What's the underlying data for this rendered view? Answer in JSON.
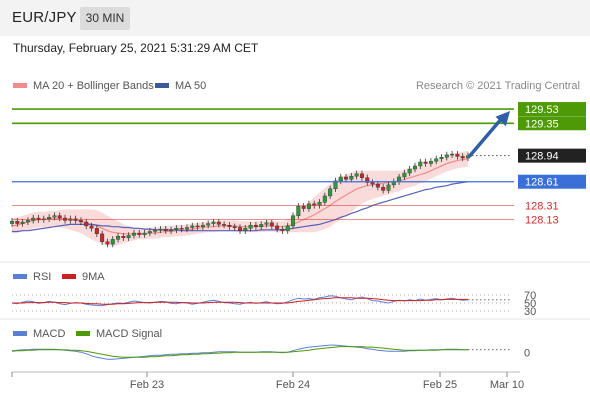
{
  "header": {
    "symbol": "EUR/JPY",
    "timeframe": "30 MIN"
  },
  "timestamp": "Thursday, February 25, 2021 5:31:29 AM CET",
  "legend": {
    "bb": "MA 20 + Bollinger Bands",
    "ma50": "MA 50"
  },
  "credit": "Research © 2021 Trading Central",
  "rsi_legend": {
    "rsi": "RSI",
    "ma": "9MA"
  },
  "macd_legend": {
    "macd": "MACD",
    "signal": "MACD Signal"
  },
  "colors": {
    "target": "#4e9a06",
    "pivot": "#3a6fd8",
    "support": "#d12b2b",
    "price": "#222222",
    "ma50": "#5561b8",
    "bb": "#f5b0b0",
    "up": "#2b9a3a",
    "down": "#c62828",
    "rsi": "#5c7fd6",
    "rsi_ma": "#cc1f1f",
    "macd": "#5c7fd6",
    "macd_signal": "#4e9a06",
    "arrow": "#2f5fa8"
  },
  "chart_data": {
    "type": "candlestick",
    "x_labels": [
      "Feb 23",
      "Feb 24",
      "Feb 25",
      "Mar 10"
    ],
    "ylim": [
      127.72,
      129.67
    ],
    "levels": [
      {
        "value": 129.53,
        "label": "129.53",
        "kind": "target"
      },
      {
        "value": 129.35,
        "label": "129.35",
        "kind": "target"
      },
      {
        "value": 128.94,
        "label": "128.94",
        "kind": "price"
      },
      {
        "value": 128.61,
        "label": "128.61",
        "kind": "pivot"
      },
      {
        "value": 128.31,
        "label": "128.31",
        "kind": "support"
      },
      {
        "value": 128.13,
        "label": "128.13",
        "kind": "support"
      }
    ],
    "close_series": [
      128.11,
      128.08,
      128.1,
      128.12,
      128.15,
      128.13,
      128.14,
      128.16,
      128.18,
      128.15,
      128.12,
      128.14,
      128.12,
      128.1,
      128.05,
      128.02,
      127.95,
      127.85,
      127.82,
      127.88,
      127.92,
      127.9,
      127.93,
      127.96,
      127.94,
      127.96,
      127.98,
      128.0,
      128.01,
      127.99,
      128.0,
      128.02,
      128.01,
      128.03,
      128.05,
      128.04,
      128.06,
      128.08,
      128.1,
      128.07,
      128.06,
      128.04,
      128.03,
      127.99,
      128.02,
      128.06,
      128.04,
      128.07,
      128.09,
      128.05,
      128.01,
      127.99,
      128.05,
      128.18,
      128.3,
      128.27,
      128.33,
      128.31,
      128.35,
      128.43,
      128.52,
      128.62,
      128.67,
      128.64,
      128.68,
      128.71,
      128.66,
      128.6,
      128.58,
      128.54,
      128.5,
      128.57,
      128.61,
      128.67,
      128.72,
      128.77,
      128.81,
      128.86,
      128.84,
      128.87,
      128.9,
      128.92,
      128.95,
      128.96,
      128.93,
      128.91,
      128.94
    ],
    "ma20": [
      128.05,
      128.06,
      128.08,
      128.1,
      128.12,
      128.13,
      128.13,
      128.14,
      128.14,
      128.14,
      128.14,
      128.13,
      128.12,
      128.11,
      128.09,
      128.07,
      128.05,
      128.02,
      127.99,
      127.97,
      127.96,
      127.95,
      127.95,
      127.95,
      127.95,
      127.95,
      127.96,
      127.96,
      127.97,
      127.98,
      127.98,
      127.99,
      127.99,
      128.0,
      128.01,
      128.02,
      128.03,
      128.04,
      128.04,
      128.05,
      128.05,
      128.05,
      128.05,
      128.04,
      128.04,
      128.04,
      128.04,
      128.04,
      128.05,
      128.05,
      128.04,
      128.04,
      128.05,
      128.07,
      128.1,
      128.13,
      128.16,
      128.19,
      128.23,
      128.27,
      128.31,
      128.36,
      128.4,
      128.44,
      128.48,
      128.52,
      128.54,
      128.56,
      128.57,
      128.58,
      128.59,
      128.6,
      128.61,
      128.62,
      128.64,
      128.66,
      128.68,
      128.7,
      128.72,
      128.75,
      128.78,
      128.81,
      128.84,
      128.86,
      128.88,
      128.89,
      128.9
    ],
    "bb_width": [
      0.1,
      0.1,
      0.1,
      0.1,
      0.1,
      0.1,
      0.1,
      0.1,
      0.1,
      0.11,
      0.12,
      0.13,
      0.14,
      0.15,
      0.17,
      0.19,
      0.2,
      0.2,
      0.19,
      0.17,
      0.15,
      0.12,
      0.1,
      0.08,
      0.07,
      0.07,
      0.07,
      0.07,
      0.07,
      0.07,
      0.07,
      0.07,
      0.07,
      0.07,
      0.07,
      0.07,
      0.07,
      0.07,
      0.07,
      0.07,
      0.07,
      0.07,
      0.07,
      0.07,
      0.07,
      0.07,
      0.07,
      0.07,
      0.07,
      0.07,
      0.07,
      0.07,
      0.08,
      0.1,
      0.13,
      0.16,
      0.19,
      0.22,
      0.24,
      0.26,
      0.27,
      0.27,
      0.27,
      0.26,
      0.25,
      0.23,
      0.21,
      0.19,
      0.18,
      0.17,
      0.16,
      0.15,
      0.14,
      0.13,
      0.12,
      0.12,
      0.12,
      0.11,
      0.11,
      0.1,
      0.1,
      0.1,
      0.1,
      0.1,
      0.1,
      0.1,
      0.1
    ],
    "ma50": [
      127.98,
      127.98,
      127.99,
      127.99,
      128.0,
      128.01,
      128.02,
      128.03,
      128.04,
      128.05,
      128.06,
      128.07,
      128.07,
      128.07,
      128.07,
      128.07,
      128.06,
      128.05,
      128.05,
      128.04,
      128.04,
      128.03,
      128.03,
      128.02,
      128.02,
      128.01,
      128.01,
      128.0,
      128.0,
      128.0,
      128.0,
      128.0,
      127.99,
      127.99,
      127.99,
      127.99,
      127.99,
      127.99,
      127.99,
      127.99,
      127.99,
      127.99,
      127.99,
      127.99,
      127.99,
      127.99,
      127.99,
      128.0,
      128.0,
      128.0,
      128.0,
      128.0,
      128.01,
      128.02,
      128.03,
      128.04,
      128.05,
      128.06,
      128.07,
      128.09,
      128.11,
      128.13,
      128.16,
      128.18,
      128.21,
      128.23,
      128.26,
      128.28,
      128.31,
      128.33,
      128.35,
      128.37,
      128.39,
      128.41,
      128.43,
      128.45,
      128.47,
      128.49,
      128.51,
      128.52,
      128.54,
      128.55,
      128.56,
      128.58,
      128.59,
      128.6,
      128.61
    ],
    "rsi": {
      "ticks": [
        70,
        50,
        30
      ],
      "ylim": [
        20,
        80
      ],
      "rsi": [
        50,
        48,
        52,
        55,
        53,
        49,
        51,
        54,
        52,
        48,
        46,
        49,
        51,
        50,
        47,
        45,
        44,
        43,
        46,
        48,
        50,
        49,
        52,
        55,
        53,
        51,
        50,
        52,
        54,
        53,
        49,
        48,
        51,
        50,
        47,
        49,
        52,
        55,
        57,
        54,
        51,
        50,
        48,
        47,
        50,
        52,
        49,
        51,
        53,
        50,
        48,
        49,
        53,
        58,
        62,
        60,
        61,
        59,
        63,
        65,
        68,
        67,
        63,
        60,
        58,
        62,
        65,
        61,
        56,
        55,
        52,
        50,
        54,
        57,
        55,
        58,
        56,
        60,
        57,
        59,
        61,
        58,
        60,
        62,
        59,
        57,
        58
      ],
      "ma9": [
        50,
        50,
        50,
        51,
        51,
        51,
        51,
        52,
        52,
        51,
        51,
        50,
        50,
        50,
        49,
        48,
        48,
        47,
        47,
        47,
        48,
        48,
        49,
        50,
        51,
        51,
        51,
        52,
        52,
        52,
        52,
        52,
        51,
        51,
        50,
        50,
        50,
        51,
        52,
        52,
        52,
        52,
        52,
        51,
        50,
        50,
        50,
        50,
        50,
        50,
        50,
        50,
        50,
        52,
        54,
        55,
        57,
        58,
        60,
        61,
        62,
        63,
        63,
        63,
        63,
        62,
        62,
        62,
        61,
        60,
        58,
        57,
        56,
        56,
        56,
        56,
        56,
        56,
        57,
        57,
        58,
        58,
        59,
        59,
        59,
        59,
        59
      ]
    },
    "macd": {
      "ticks": [
        0
      ],
      "ylim": [
        -0.3,
        0.25
      ],
      "macd": [
        0.04,
        0.05,
        0.06,
        0.06,
        0.07,
        0.07,
        0.07,
        0.07,
        0.07,
        0.06,
        0.05,
        0.04,
        0.03,
        0.01,
        -0.02,
        -0.06,
        -0.09,
        -0.11,
        -0.13,
        -0.13,
        -0.12,
        -0.11,
        -0.1,
        -0.09,
        -0.08,
        -0.07,
        -0.06,
        -0.05,
        -0.05,
        -0.04,
        -0.03,
        -0.03,
        -0.02,
        -0.02,
        -0.01,
        -0.01,
        0.0,
        0.0,
        0.01,
        0.02,
        0.02,
        0.02,
        0.02,
        0.01,
        0.01,
        0.01,
        0.01,
        0.02,
        0.02,
        0.02,
        0.01,
        0.0,
        0.01,
        0.04,
        0.07,
        0.09,
        0.11,
        0.12,
        0.13,
        0.14,
        0.15,
        0.15,
        0.14,
        0.13,
        0.12,
        0.11,
        0.1,
        0.08,
        0.07,
        0.05,
        0.04,
        0.03,
        0.03,
        0.03,
        0.03,
        0.04,
        0.04,
        0.05,
        0.05,
        0.06,
        0.06,
        0.06,
        0.07,
        0.07,
        0.07,
        0.06,
        0.06
      ],
      "signal": [
        0.03,
        0.04,
        0.04,
        0.05,
        0.05,
        0.06,
        0.06,
        0.06,
        0.06,
        0.06,
        0.06,
        0.05,
        0.05,
        0.04,
        0.03,
        0.01,
        -0.01,
        -0.03,
        -0.05,
        -0.07,
        -0.08,
        -0.09,
        -0.09,
        -0.09,
        -0.09,
        -0.09,
        -0.08,
        -0.08,
        -0.07,
        -0.06,
        -0.06,
        -0.05,
        -0.04,
        -0.04,
        -0.03,
        -0.03,
        -0.02,
        -0.02,
        -0.01,
        -0.01,
        0.0,
        0.0,
        0.01,
        0.01,
        0.01,
        0.01,
        0.01,
        0.01,
        0.01,
        0.01,
        0.01,
        0.01,
        0.01,
        0.02,
        0.03,
        0.04,
        0.05,
        0.07,
        0.08,
        0.09,
        0.1,
        0.11,
        0.12,
        0.12,
        0.12,
        0.12,
        0.12,
        0.11,
        0.11,
        0.1,
        0.09,
        0.08,
        0.07,
        0.06,
        0.05,
        0.05,
        0.05,
        0.05,
        0.05,
        0.05,
        0.05,
        0.06,
        0.06,
        0.06,
        0.06,
        0.06,
        0.06
      ]
    }
  }
}
